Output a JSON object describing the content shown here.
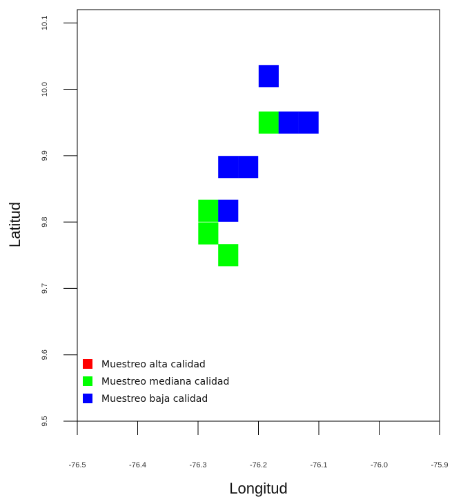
{
  "chart_data": {
    "type": "heatmap",
    "xlabel": "Longitud",
    "ylabel": "Latitud",
    "xlim": [
      -76.5,
      -75.9
    ],
    "ylim": [
      9.5,
      10.12
    ],
    "x_ticks": [
      "-76.5",
      "-76.4",
      "-76.3",
      "-76.2",
      "-76.1",
      "-76.0",
      "-75.9"
    ],
    "y_ticks": [
      "9.5",
      "9.6",
      "9.7",
      "9.8",
      "9.9",
      "10.0",
      "10.1"
    ],
    "cell_size": 0.0333,
    "legend": {
      "placement": "bottom-left",
      "entries": [
        {
          "label": "Muestreo alta calidad",
          "color": "#ff0000"
        },
        {
          "label": "Muestreo mediana calidad",
          "color": "#00ff00"
        },
        {
          "label": "Muestreo baja calidad",
          "color": "#0000ff"
        }
      ]
    },
    "cells": [
      {
        "lon": -76.183,
        "lat": 10.02,
        "quality": "baja"
      },
      {
        "lon": -76.183,
        "lat": 9.95,
        "quality": "mediana"
      },
      {
        "lon": -76.15,
        "lat": 9.95,
        "quality": "baja"
      },
      {
        "lon": -76.117,
        "lat": 9.95,
        "quality": "baja"
      },
      {
        "lon": -76.25,
        "lat": 9.883,
        "quality": "baja"
      },
      {
        "lon": -76.217,
        "lat": 9.883,
        "quality": "baja"
      },
      {
        "lon": -76.283,
        "lat": 9.817,
        "quality": "mediana"
      },
      {
        "lon": -76.25,
        "lat": 9.817,
        "quality": "baja"
      },
      {
        "lon": -76.283,
        "lat": 9.783,
        "quality": "mediana"
      },
      {
        "lon": -76.25,
        "lat": 9.75,
        "quality": "mediana"
      }
    ],
    "colors": {
      "alta": "#ff0000",
      "mediana": "#00ff00",
      "baja": "#0000ff"
    }
  }
}
